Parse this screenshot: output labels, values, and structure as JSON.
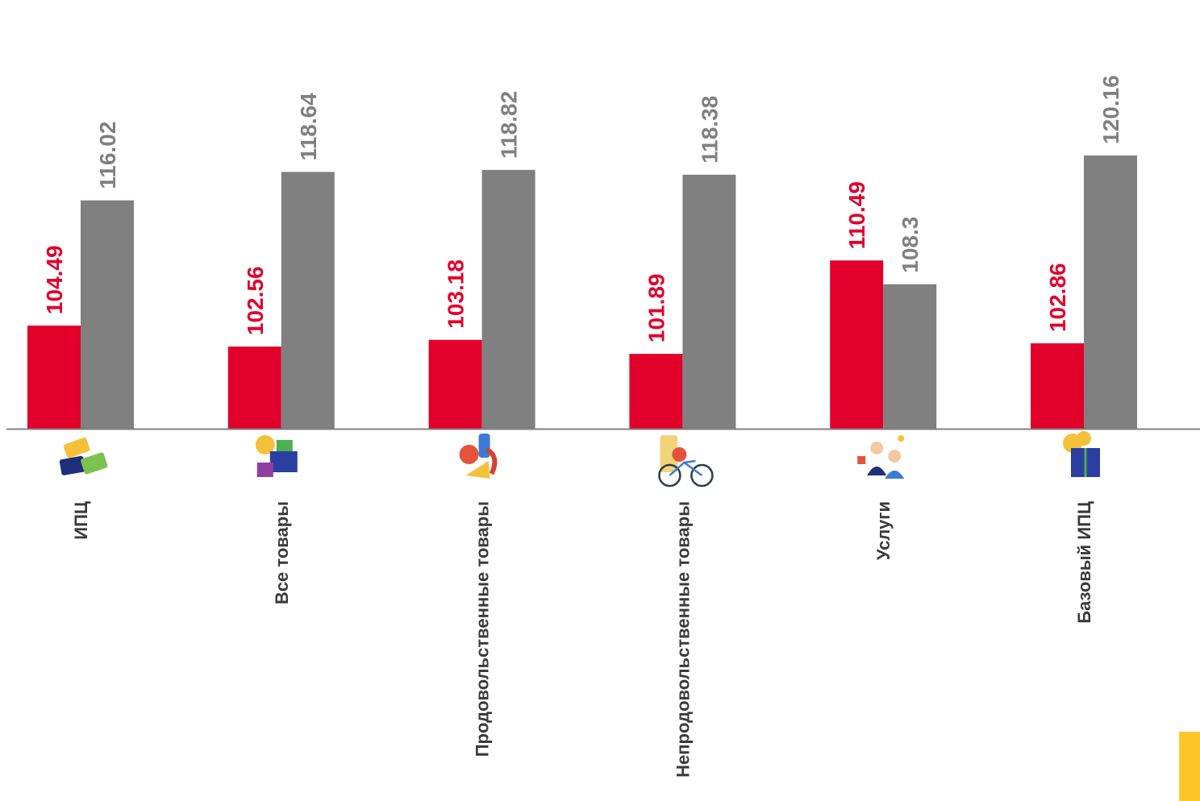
{
  "colors": {
    "series_current": "#E2002A",
    "series_base": "#808080",
    "axis": "#808080",
    "category_text": "#3a3a3a",
    "accent_tab": "#FFC629"
  },
  "chart_data": {
    "type": "bar",
    "title": "",
    "xlabel": "",
    "ylabel": "",
    "ylim": [
      95,
      122
    ],
    "grid": false,
    "legend": "none",
    "categories": [
      "ИПЦ",
      "Все товары",
      "Продовольственные товары",
      "Непродовольственные товары",
      "Услуги",
      "Базовый ИПЦ"
    ],
    "category_icons": [
      "price-tags-icon",
      "goods-boxes-icon",
      "food-products-icon",
      "clothing-bicycle-icon",
      "services-people-icon",
      "core-cpi-box-icon"
    ],
    "series": [
      {
        "color": "#E2002A",
        "values": [
          104.49,
          102.56,
          103.18,
          101.89,
          110.49,
          102.86
        ],
        "labels": [
          "104.49",
          "102.56",
          "103.18",
          "101.89",
          "110.49",
          "102.86"
        ]
      },
      {
        "color": "#808080",
        "values": [
          116.02,
          118.64,
          118.82,
          118.38,
          108.3,
          120.16
        ],
        "labels": [
          "116.02",
          "118.64",
          "118.82",
          "118.38",
          "108.3",
          "120.16"
        ]
      }
    ]
  }
}
